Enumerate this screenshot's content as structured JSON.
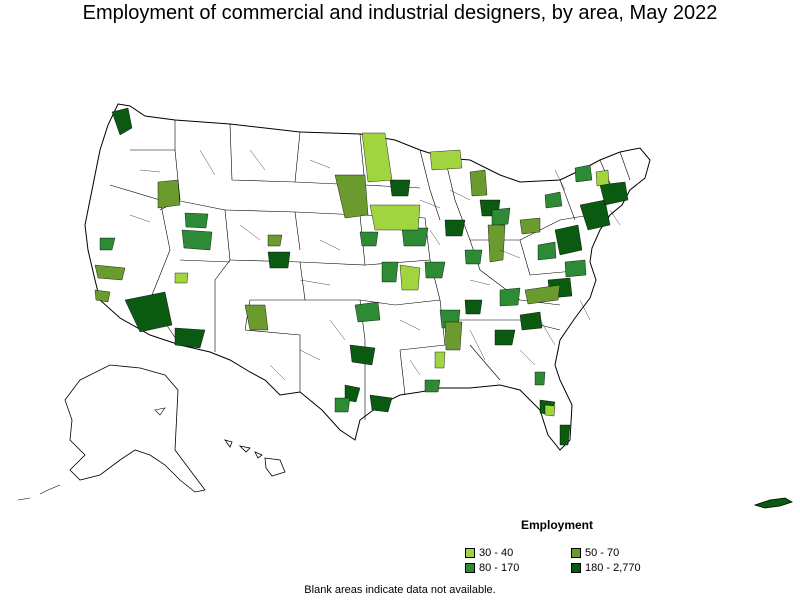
{
  "title": "Employment of commercial and industrial designers, by area, May 2022",
  "legend": {
    "title": "Employment",
    "items": [
      {
        "label": "30 - 40",
        "color": "#a1d53f"
      },
      {
        "label": "50 - 70",
        "color": "#6b9a2e"
      },
      {
        "label": "80 - 170",
        "color": "#2e8b35"
      },
      {
        "label": "180 - 2,770",
        "color": "#0a5a12"
      }
    ]
  },
  "footnote": "Blank areas indicate data not available.",
  "colors": {
    "outline": "#000000",
    "land": "#ffffff"
  }
}
